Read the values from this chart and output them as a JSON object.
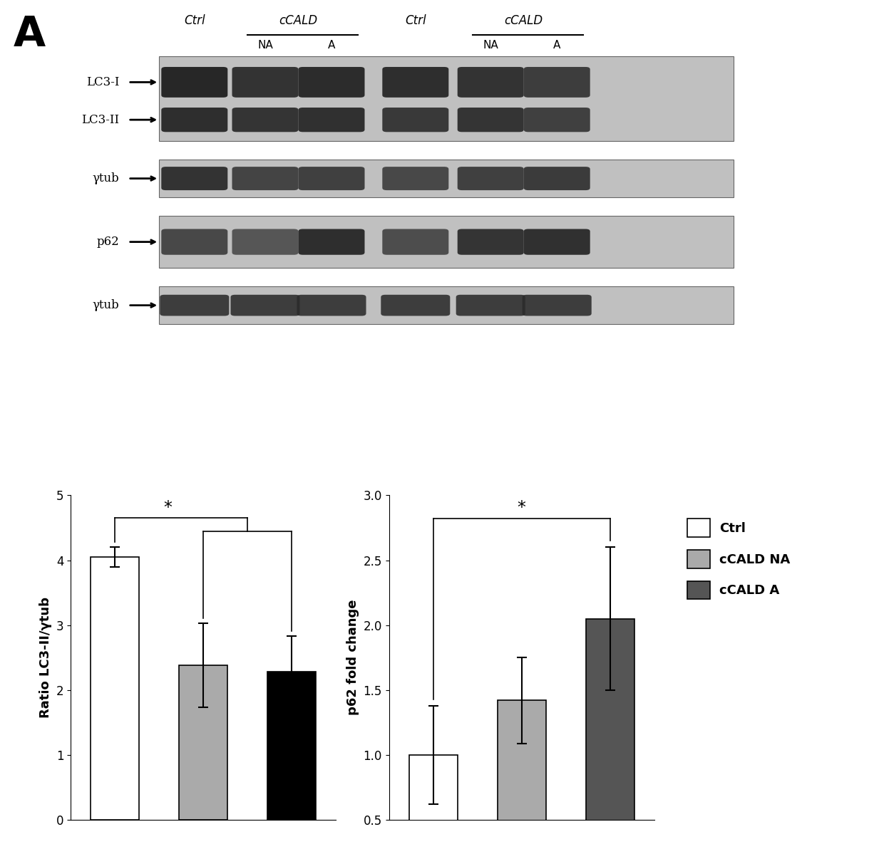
{
  "panel_label": "A",
  "background_color": "#ffffff",
  "bar1_categories": [
    "Ctrl",
    "cCALD NA",
    "cCALD A"
  ],
  "bar1_values": [
    4.05,
    2.38,
    2.28
  ],
  "bar1_errors": [
    0.15,
    0.65,
    0.55
  ],
  "bar1_ylabel": "Ratio LC3-II/γtub",
  "bar1_ylim": [
    0,
    5
  ],
  "bar1_yticks": [
    0,
    1,
    2,
    3,
    4,
    5
  ],
  "bar1_colors": [
    "#ffffff",
    "#aaaaaa",
    "#000000"
  ],
  "bar1_edgecolor": "#000000",
  "bar2_categories": [
    "Ctrl",
    "cCALD NA",
    "cCALD A"
  ],
  "bar2_values": [
    1.0,
    1.42,
    2.05
  ],
  "bar2_errors": [
    0.38,
    0.33,
    0.55
  ],
  "bar2_ylabel": "p62 fold change",
  "bar2_ylim": [
    0.5,
    3.0
  ],
  "bar2_yticks": [
    0.5,
    1.0,
    1.5,
    2.0,
    2.5,
    3.0
  ],
  "bar2_colors": [
    "#ffffff",
    "#aaaaaa",
    "#555555"
  ],
  "bar2_edgecolor": "#000000",
  "legend_labels": [
    "Ctrl",
    "cCALD NA",
    "cCALD A"
  ],
  "legend_colors": [
    "#ffffff",
    "#aaaaaa",
    "#555555"
  ]
}
